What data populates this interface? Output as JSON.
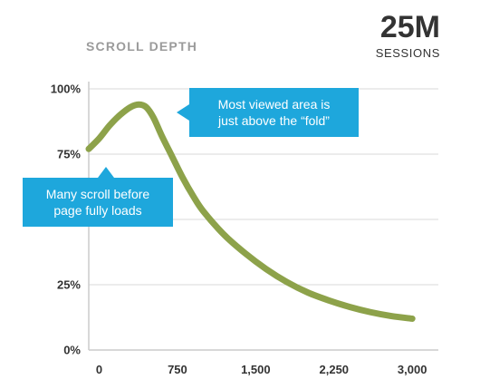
{
  "header": {
    "subtitle": "SCROLL DEPTH",
    "sessions_value": "25M",
    "sessions_label": "SESSIONS"
  },
  "callouts": {
    "peak": "Most viewed area is\njust above the “fold”",
    "loads": "Many scroll before\npage fully loads"
  },
  "colors": {
    "line": "#8da24a",
    "callout": "#1ea7dc",
    "grid": "#d9d9d9",
    "axis": "#cccccc",
    "tick_text": "#333333",
    "subtitle": "#9b9b9b"
  },
  "chart_data": {
    "type": "line",
    "title": "",
    "xlabel": "",
    "ylabel": "",
    "xlim": [
      -100,
      3250
    ],
    "ylim": [
      0,
      100
    ],
    "x_ticks": [
      0,
      750,
      1500,
      2250,
      3000
    ],
    "x_tick_labels": [
      "0",
      "750",
      "1,500",
      "2,250",
      "3,000"
    ],
    "y_ticks": [
      0,
      25,
      50,
      75,
      100
    ],
    "y_tick_labels": [
      "0%",
      "25%",
      "",
      "75%",
      "100%"
    ],
    "grid": "horizontal",
    "legend": "none",
    "series": [
      {
        "x": [
          -100,
          0,
          100,
          200,
          300,
          380,
          450,
          520,
          600,
          700,
          800,
          900,
          1000,
          1200,
          1400,
          1600,
          1800,
          2000,
          2200,
          2400,
          2600,
          2800,
          3000
        ],
        "values": [
          77,
          81,
          86,
          90,
          93,
          94,
          93,
          89,
          82,
          74,
          66,
          59,
          53,
          44,
          37,
          31,
          26,
          22,
          19,
          16.5,
          14.5,
          13,
          12
        ]
      }
    ]
  }
}
